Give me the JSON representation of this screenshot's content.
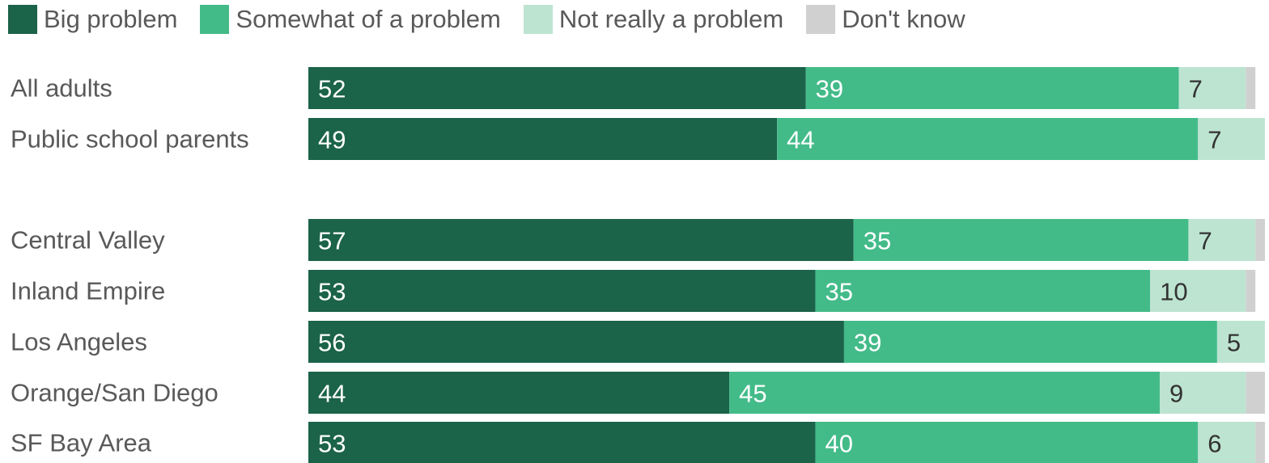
{
  "chart_data": {
    "type": "bar",
    "orientation": "horizontal",
    "stacked": true,
    "xlim": [
      0,
      100
    ],
    "legend_position": "top-left",
    "grid": false,
    "categories": [
      "All adults",
      "Public school parents",
      "Central Valley",
      "Inland Empire",
      "Los Angeles",
      "Orange/San Diego",
      "SF Bay Area"
    ],
    "series": [
      {
        "name": "Big problem",
        "color": "#1b6349",
        "label_color": "#ffffff",
        "values": [
          52,
          49,
          57,
          53,
          56,
          44,
          53
        ]
      },
      {
        "name": "Somewhat of a problem",
        "color": "#43bb89",
        "label_color": "#ffffff",
        "values": [
          39,
          44,
          35,
          35,
          39,
          45,
          40
        ]
      },
      {
        "name": "Not really a problem",
        "color": "#bde4d1",
        "label_color": "#333333",
        "values": [
          7,
          7,
          7,
          10,
          5,
          9,
          6
        ]
      },
      {
        "name": "Don't know",
        "color": "#d0d0d0",
        "label_color": "#333333",
        "values": [
          1,
          0,
          1,
          1,
          0,
          2,
          1
        ]
      }
    ],
    "labeled_series": [
      0,
      1,
      2
    ]
  }
}
